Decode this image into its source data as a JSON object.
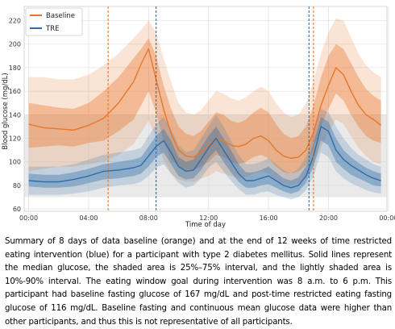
{
  "caption": "Summary of 8 days of data baseline (orange) and at the end of 12 weeks of time restricted eating intervention (blue) for a participant with type 2 diabetes mellitus. Solid lines represent the median glucose, the shaded area is 25%–75% interval, and the lightly shaded area is 10%-90% interval. The eating window goal during intervention was 8 a.m. to 6 p.m. This participant had baseline fasting glucose of 167 mg/dL and post-time restricted eating fasting glucose of 116 mg/dL. Baseline fasting and continuous mean glucose data were higher than other participants, and thus this is not representative of all participants.",
  "chart_data": {
    "type": "area",
    "xlabel": "Time of day",
    "ylabel": "Blood glucose (mg/dL)",
    "xlim": [
      -0.3,
      23.9
    ],
    "ylim": [
      58,
      232
    ],
    "x_ticks": [
      0,
      4,
      8,
      12,
      16,
      20,
      24
    ],
    "x_tick_labels": [
      "00:00",
      "04:00",
      "08:00",
      "12:00",
      "16:00",
      "20:00",
      "00:00"
    ],
    "y_ticks": [
      60,
      80,
      100,
      120,
      140,
      160,
      180,
      200,
      220
    ],
    "grid": true,
    "legend_position": "top-left",
    "reference_band": {
      "y_low": 70,
      "y_high": 140,
      "color": "#d9d9d9"
    },
    "vlines": [
      {
        "x": 5.3,
        "color": "#e8762c",
        "style": "dashed"
      },
      {
        "x": 8.5,
        "color": "#2f6ea8",
        "style": "dashed"
      },
      {
        "x": 18.7,
        "color": "#2f6ea8",
        "style": "dashed"
      },
      {
        "x": 19.0,
        "color": "#e8762c",
        "style": "dashed"
      }
    ],
    "x": [
      0,
      1,
      2,
      3,
      4,
      5,
      6,
      7,
      7.5,
      8,
      8.5,
      9,
      9.5,
      10,
      10.5,
      11,
      11.5,
      12,
      12.5,
      13,
      13.5,
      14,
      14.5,
      15,
      15.5,
      16,
      16.5,
      17,
      17.5,
      18,
      18.5,
      19,
      19.5,
      20,
      20.5,
      21,
      21.5,
      22,
      22.5,
      23,
      23.5
    ],
    "series": [
      {
        "name": "Baseline",
        "color": "#e8762c",
        "median": [
          132,
          129,
          128,
          127,
          131,
          137,
          150,
          168,
          183,
          196,
          170,
          145,
          124,
          110,
          105,
          104,
          108,
          114,
          120,
          118,
          114,
          113,
          115,
          120,
          122,
          118,
          110,
          105,
          103,
          104,
          110,
          125,
          148,
          165,
          180,
          174,
          160,
          148,
          140,
          136,
          131
        ],
        "p25": [
          112,
          113,
          114,
          113,
          116,
          118,
          126,
          136,
          148,
          160,
          142,
          118,
          102,
          96,
          93,
          93,
          96,
          100,
          106,
          104,
          100,
          98,
          100,
          104,
          106,
          103,
          96,
          91,
          90,
          92,
          97,
          112,
          130,
          145,
          158,
          152,
          140,
          130,
          122,
          118,
          116
        ],
        "p75": [
          150,
          148,
          146,
          145,
          150,
          160,
          172,
          188,
          196,
          205,
          190,
          165,
          145,
          130,
          124,
          122,
          126,
          134,
          142,
          140,
          135,
          133,
          136,
          142,
          146,
          142,
          132,
          124,
          120,
          122,
          130,
          148,
          172,
          190,
          200,
          196,
          184,
          172,
          162,
          156,
          152
        ],
        "p10": [
          92,
          94,
          96,
          96,
          98,
          100,
          106,
          115,
          125,
          135,
          120,
          102,
          90,
          85,
          83,
          83,
          86,
          88,
          92,
          90,
          88,
          86,
          87,
          90,
          92,
          90,
          85,
          81,
          80,
          82,
          86,
          98,
          112,
          125,
          136,
          132,
          122,
          112,
          105,
          100,
          98
        ],
        "p90": [
          172,
          172,
          170,
          170,
          174,
          182,
          192,
          205,
          212,
          220,
          210,
          188,
          168,
          150,
          142,
          140,
          144,
          152,
          160,
          158,
          154,
          152,
          155,
          160,
          164,
          160,
          150,
          142,
          138,
          140,
          150,
          168,
          192,
          210,
          222,
          220,
          206,
          192,
          182,
          176,
          172
        ]
      },
      {
        "name": "TRE",
        "color": "#2f6ea8",
        "median": [
          84,
          83,
          83,
          85,
          88,
          92,
          93,
          95,
          97,
          105,
          113,
          118,
          108,
          96,
          92,
          93,
          102,
          112,
          120,
          110,
          100,
          90,
          84,
          84,
          86,
          88,
          84,
          80,
          78,
          80,
          88,
          105,
          130,
          126,
          110,
          102,
          97,
          93,
          89,
          86,
          84
        ],
        "p25": [
          79,
          78,
          78,
          79,
          82,
          85,
          86,
          88,
          90,
          96,
          104,
          108,
          98,
          88,
          85,
          86,
          93,
          103,
          110,
          100,
          91,
          83,
          78,
          78,
          80,
          81,
          78,
          75,
          73,
          75,
          82,
          96,
          118,
          114,
          100,
          94,
          89,
          86,
          83,
          80,
          79
        ],
        "p75": [
          90,
          89,
          89,
          91,
          94,
          98,
          100,
          102,
          104,
          113,
          122,
          128,
          118,
          104,
          100,
          102,
          112,
          122,
          130,
          120,
          110,
          98,
          91,
          91,
          93,
          96,
          91,
          86,
          84,
          87,
          96,
          116,
          138,
          134,
          120,
          110,
          104,
          99,
          95,
          92,
          90
        ],
        "p10": [
          72,
          72,
          72,
          73,
          75,
          78,
          80,
          81,
          83,
          88,
          95,
          98,
          90,
          82,
          78,
          80,
          86,
          95,
          100,
          92,
          84,
          77,
          72,
          72,
          74,
          75,
          72,
          70,
          68,
          70,
          76,
          88,
          108,
          104,
          92,
          86,
          82,
          79,
          76,
          74,
          73
        ],
        "p90": [
          96,
          96,
          96,
          98,
          102,
          106,
          108,
          110,
          112,
          122,
          132,
          138,
          128,
          114,
          108,
          110,
          120,
          130,
          140,
          130,
          118,
          106,
          98,
          98,
          100,
          103,
          98,
          93,
          90,
          94,
          104,
          125,
          145,
          142,
          130,
          120,
          112,
          106,
          102,
          98,
          96
        ]
      }
    ]
  }
}
